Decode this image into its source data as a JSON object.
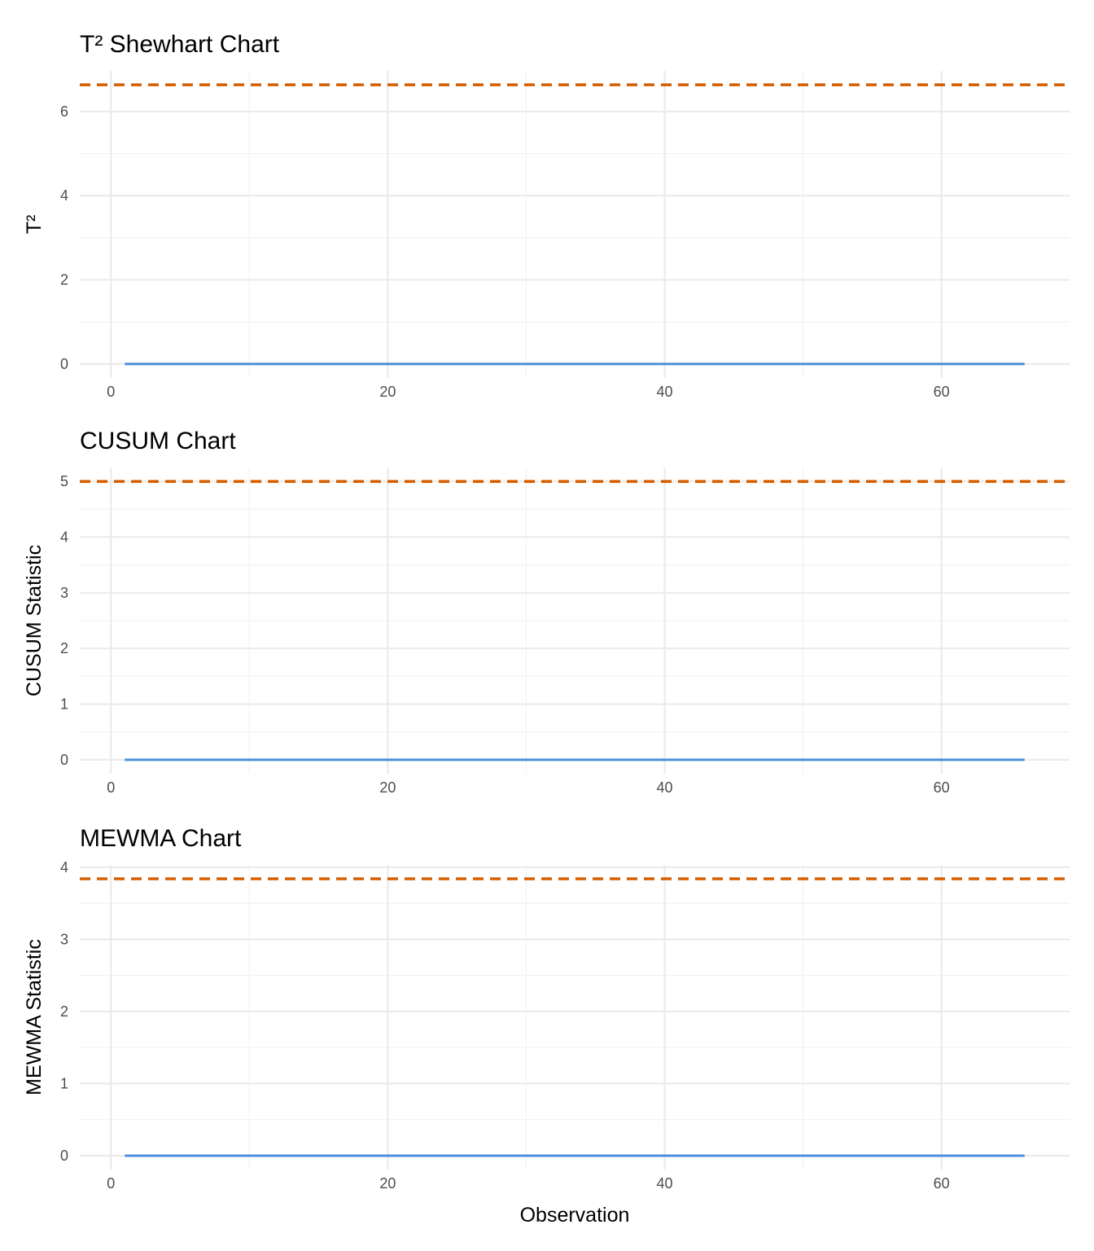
{
  "chart_data": [
    {
      "type": "line",
      "title": "T² Shewhart Chart",
      "xlabel": "",
      "ylabel": "T²",
      "xlim": [
        1,
        66
      ],
      "ylim": [
        0,
        6.635
      ],
      "xticks": [
        0,
        20,
        40,
        60
      ],
      "yticks": [
        0,
        2,
        4,
        6
      ],
      "grid": true,
      "series": [
        {
          "x_start": 1,
          "x_end": 66,
          "value": 0,
          "color": "#4a8fd9"
        }
      ],
      "control_limit": {
        "value": 6.635,
        "style": "dashed",
        "color": "#d55e00"
      }
    },
    {
      "type": "line",
      "title": "CUSUM Chart",
      "xlabel": "",
      "ylabel": "CUSUM Statistic",
      "xlim": [
        1,
        66
      ],
      "ylim": [
        0,
        5
      ],
      "xticks": [
        0,
        20,
        40,
        60
      ],
      "yticks": [
        0,
        1,
        2,
        3,
        4,
        5
      ],
      "grid": true,
      "series": [
        {
          "x_start": 1,
          "x_end": 66,
          "value": 0,
          "color": "#4a8fd9"
        }
      ],
      "control_limit": {
        "value": 5,
        "style": "dashed",
        "color": "#d55e00"
      }
    },
    {
      "type": "line",
      "title": "MEWMA Chart",
      "xlabel": "Observation",
      "ylabel": "MEWMA Statistic",
      "xlim": [
        1,
        66
      ],
      "ylim": [
        0,
        3.84
      ],
      "xticks": [
        0,
        20,
        40,
        60
      ],
      "yticks": [
        0,
        1,
        2,
        3,
        4
      ],
      "grid": true,
      "series": [
        {
          "x_start": 1,
          "x_end": 66,
          "value": 0,
          "color": "#4a8fd9"
        }
      ],
      "control_limit": {
        "value": 3.84,
        "style": "dashed",
        "color": "#d55e00"
      }
    }
  ]
}
